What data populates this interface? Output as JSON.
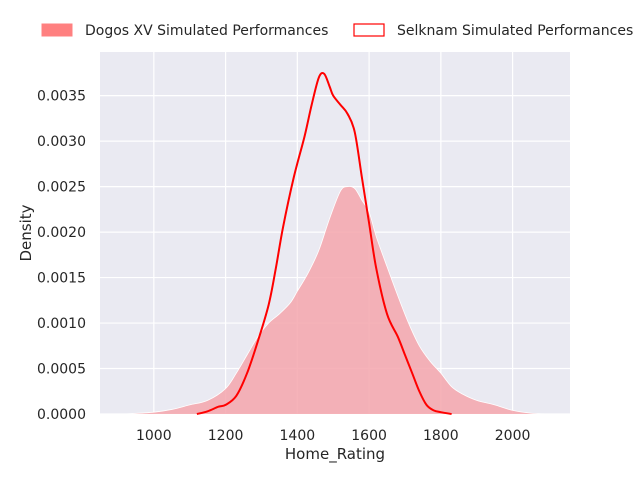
{
  "chart_data": {
    "type": "area",
    "xlabel": "Home_Rating",
    "ylabel": "Density",
    "xlim": [
      850,
      2160
    ],
    "ylim": [
      0,
      0.00398
    ],
    "x_ticks": [
      1000,
      1200,
      1400,
      1600,
      1800,
      2000
    ],
    "x_tick_labels": [
      "1000",
      "1200",
      "1400",
      "1600",
      "1800",
      "2000"
    ],
    "y_ticks": [
      0,
      0.0005,
      0.001,
      0.0015,
      0.002,
      0.0025,
      0.003,
      0.0035
    ],
    "y_tick_labels": [
      "0.0000",
      "0.0005",
      "0.0010",
      "0.0015",
      "0.0020",
      "0.0025",
      "0.0030",
      "0.0035"
    ],
    "grid": true,
    "legend_position": "top",
    "series": [
      {
        "name": "Dogos XV Simulated Performances",
        "style": "filled",
        "color": "#ff8080",
        "points": [
          [
            920,
            0.0
          ],
          [
            1000,
            2e-05
          ],
          [
            1050,
            5e-05
          ],
          [
            1100,
            0.0001
          ],
          [
            1150,
            0.00015
          ],
          [
            1200,
            0.00028
          ],
          [
            1230,
            0.00045
          ],
          [
            1260,
            0.00065
          ],
          [
            1290,
            0.00085
          ],
          [
            1320,
            0.001
          ],
          [
            1350,
            0.0011
          ],
          [
            1380,
            0.00122
          ],
          [
            1400,
            0.00135
          ],
          [
            1430,
            0.00155
          ],
          [
            1460,
            0.0018
          ],
          [
            1490,
            0.00215
          ],
          [
            1520,
            0.00245
          ],
          [
            1540,
            0.0025
          ],
          [
            1560,
            0.00248
          ],
          [
            1580,
            0.00235
          ],
          [
            1600,
            0.00222
          ],
          [
            1620,
            0.00195
          ],
          [
            1650,
            0.00162
          ],
          [
            1680,
            0.0013
          ],
          [
            1710,
            0.001
          ],
          [
            1740,
            0.00075
          ],
          [
            1770,
            0.00058
          ],
          [
            1800,
            0.00045
          ],
          [
            1830,
            0.0003
          ],
          [
            1860,
            0.00022
          ],
          [
            1900,
            0.00015
          ],
          [
            1950,
            0.0001
          ],
          [
            2000,
            4e-05
          ],
          [
            2050,
            1e-05
          ],
          [
            2100,
            0.0
          ]
        ]
      },
      {
        "name": "Selknam Simulated Performances",
        "style": "line",
        "color": "#ff0000",
        "points": [
          [
            1120,
            0.0
          ],
          [
            1150,
            3e-05
          ],
          [
            1180,
            8e-05
          ],
          [
            1200,
            0.0001
          ],
          [
            1230,
            0.0002
          ],
          [
            1260,
            0.00045
          ],
          [
            1290,
            0.0008
          ],
          [
            1320,
            0.0012
          ],
          [
            1340,
            0.0016
          ],
          [
            1360,
            0.00205
          ],
          [
            1390,
            0.0026
          ],
          [
            1420,
            0.00305
          ],
          [
            1440,
            0.0034
          ],
          [
            1460,
            0.0037
          ],
          [
            1475,
            0.00374
          ],
          [
            1490,
            0.0036
          ],
          [
            1500,
            0.0035
          ],
          [
            1520,
            0.0034
          ],
          [
            1540,
            0.0033
          ],
          [
            1560,
            0.0031
          ],
          [
            1580,
            0.0026
          ],
          [
            1600,
            0.0021
          ],
          [
            1620,
            0.0016
          ],
          [
            1650,
            0.0011
          ],
          [
            1680,
            0.00085
          ],
          [
            1700,
            0.00065
          ],
          [
            1720,
            0.00045
          ],
          [
            1740,
            0.00025
          ],
          [
            1760,
            0.0001
          ],
          [
            1780,
            4e-05
          ],
          [
            1800,
            2e-05
          ],
          [
            1830,
            0.0
          ]
        ]
      }
    ]
  }
}
